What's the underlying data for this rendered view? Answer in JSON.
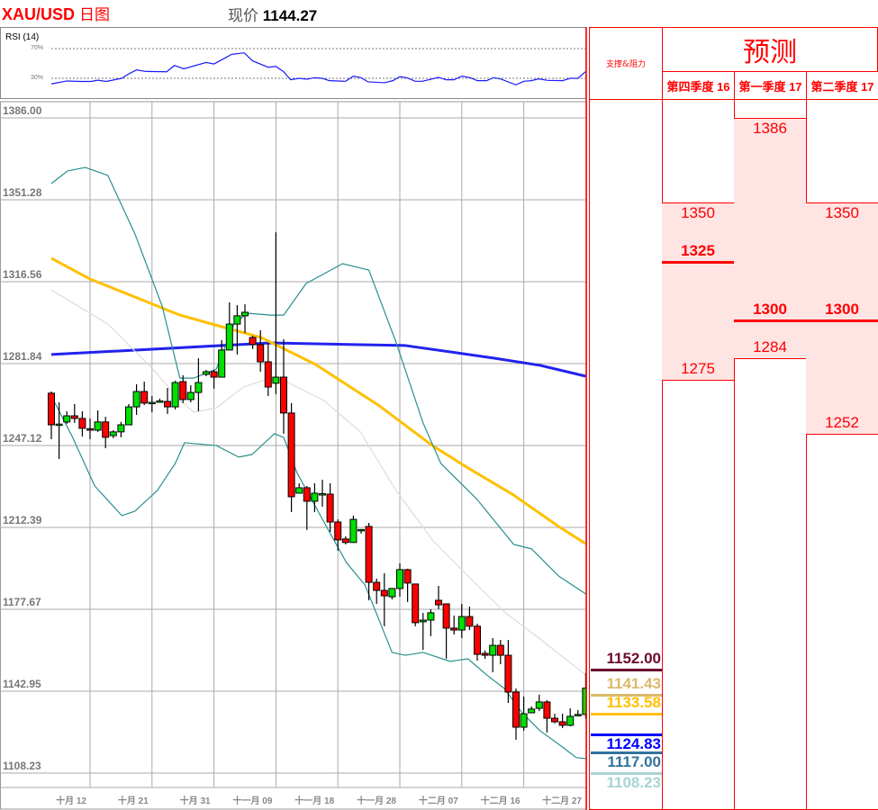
{
  "header": {
    "symbol": "XAU/USD",
    "timeframe": "日图",
    "price_label": "现价",
    "price": "1144.27"
  },
  "rsi": {
    "label": "RSI (14)",
    "upper_level": "70%",
    "lower_level": "30%",
    "upper_value": 70,
    "lower_value": 30,
    "color": "#1a1aff",
    "points": [
      [
        0,
        22.4
      ],
      [
        2,
        26.4
      ],
      [
        3.8,
        25.8
      ],
      [
        5.1,
        25.8
      ],
      [
        6,
        27.4
      ],
      [
        7.1,
        25.8
      ],
      [
        9.1,
        30
      ],
      [
        10,
        36
      ],
      [
        11,
        41.3
      ],
      [
        12.2,
        39.2
      ],
      [
        14.9,
        38.8
      ],
      [
        15.9,
        47.3
      ],
      [
        17.1,
        42.8
      ],
      [
        20,
        51.3
      ],
      [
        21,
        49.3
      ],
      [
        23.3,
        62.3
      ],
      [
        24.9,
        64.3
      ],
      [
        26,
        53.4
      ],
      [
        28,
        44.9
      ],
      [
        29,
        46.1
      ],
      [
        30,
        38.8
      ],
      [
        30.9,
        28
      ],
      [
        32,
        30
      ],
      [
        33,
        28.8
      ],
      [
        34,
        30.8
      ],
      [
        35,
        30
      ],
      [
        35.9,
        26.8
      ],
      [
        38,
        26
      ],
      [
        39,
        32.9
      ],
      [
        40,
        30.8
      ],
      [
        40.9,
        25.2
      ],
      [
        43,
        24
      ],
      [
        44.1,
        26.8
      ],
      [
        45,
        32.1
      ],
      [
        45.9,
        30.8
      ],
      [
        47,
        26
      ],
      [
        47.9,
        26
      ],
      [
        50,
        31.2
      ],
      [
        51,
        28
      ],
      [
        52,
        28
      ],
      [
        53,
        32.9
      ],
      [
        54.1,
        30.8
      ],
      [
        55,
        26.8
      ],
      [
        56.2,
        26.8
      ],
      [
        57.1,
        30.8
      ],
      [
        58,
        29.2
      ],
      [
        60,
        21.2
      ],
      [
        61,
        26
      ],
      [
        62,
        26.8
      ],
      [
        62.9,
        29.2
      ],
      [
        64.1,
        27.2
      ],
      [
        66,
        26.8
      ],
      [
        67,
        30
      ],
      [
        68,
        30
      ],
      [
        69,
        39.2
      ]
    ]
  },
  "chart_data": {
    "type": "candlestick",
    "ylim": [
      1108.23,
      1386.0
    ],
    "y_ticks": [
      "1386.00",
      "1351.28",
      "1316.56",
      "1281.84",
      "1247.12",
      "1212.39",
      "1177.67",
      "1142.95",
      "1108.23"
    ],
    "x_ticks": [
      {
        "label": "十月 12",
        "index": 5
      },
      {
        "label": "十月 21",
        "index": 13
      },
      {
        "label": "十月 31",
        "index": 21
      },
      {
        "label": "十一月 09",
        "index": 29
      },
      {
        "label": "十一月 18",
        "index": 37
      },
      {
        "label": "十一月 28",
        "index": 45
      },
      {
        "label": "十二月 07",
        "index": 53
      },
      {
        "label": "十二月 16",
        "index": 61
      },
      {
        "label": "十二月 27",
        "index": 69
      }
    ],
    "grid": true,
    "up_color": "#00e000",
    "down_color": "#ff0000",
    "candles_ohlc": [
      [
        1269.3,
        1270.0,
        1249.8,
        1255.9
      ],
      [
        1256.0,
        1265.4,
        1241.4,
        1256.2
      ],
      [
        1257.1,
        1261.6,
        1256.3,
        1259.7
      ],
      [
        1259.7,
        1264.7,
        1256.7,
        1258.6
      ],
      [
        1258.6,
        1261.6,
        1250.9,
        1254.4
      ],
      [
        1254.2,
        1258.6,
        1249.8,
        1254.0
      ],
      [
        1253.6,
        1262.0,
        1252.9,
        1257.1
      ],
      [
        1257.1,
        1259.3,
        1246.0,
        1250.6
      ],
      [
        1251.3,
        1253.6,
        1250.2,
        1252.9
      ],
      [
        1252.9,
        1257.1,
        1250.6,
        1255.9
      ],
      [
        1255.9,
        1264.7,
        1255.9,
        1263.5
      ],
      [
        1263.5,
        1273.1,
        1260.1,
        1270.0
      ],
      [
        1270.0,
        1274.2,
        1264.3,
        1265.1
      ],
      [
        1265.1,
        1268.1,
        1261.2,
        1265.4
      ],
      [
        1265.8,
        1267.0,
        1265.4,
        1266.0
      ],
      [
        1265.8,
        1271.5,
        1260.5,
        1263.5
      ],
      [
        1263.5,
        1274.6,
        1262.4,
        1273.8
      ],
      [
        1274.2,
        1276.9,
        1265.1,
        1266.6
      ],
      [
        1266.6,
        1272.7,
        1265.4,
        1269.6
      ],
      [
        1269.6,
        1284.1,
        1261.6,
        1273.8
      ],
      [
        1277.3,
        1279.2,
        1276.5,
        1278.4
      ],
      [
        1278.4,
        1279.2,
        1271.2,
        1276.1
      ],
      [
        1276.1,
        1291.8,
        1276.1,
        1287.6
      ],
      [
        1287.6,
        1307.8,
        1287.6,
        1298.6
      ],
      [
        1298.6,
        1306.6,
        1285.7,
        1302.1
      ],
      [
        1302.1,
        1307.0,
        1294.8,
        1303.6
      ],
      [
        1292.9,
        1293.7,
        1288.0,
        1289.9
      ],
      [
        1289.9,
        1296.0,
        1278.4,
        1282.6
      ],
      [
        1282.6,
        1290.6,
        1268.1,
        1271.9
      ],
      [
        1273.5,
        1337.5,
        1268.9,
        1276.1
      ],
      [
        1276.1,
        1292.2,
        1252.1,
        1260.9
      ],
      [
        1260.9,
        1265.1,
        1218.9,
        1225.4
      ],
      [
        1226.9,
        1231.1,
        1226.9,
        1229.2
      ],
      [
        1229.2,
        1230.0,
        1211.3,
        1223.5
      ],
      [
        1223.5,
        1231.1,
        1218.9,
        1226.9
      ],
      [
        1226.5,
        1232.6,
        1221.2,
        1226.7
      ],
      [
        1226.5,
        1231.1,
        1210.5,
        1214.7
      ],
      [
        1214.7,
        1215.8,
        1202.5,
        1207.1
      ],
      [
        1207.5,
        1208.6,
        1205.2,
        1206.0
      ],
      [
        1206.0,
        1217.4,
        1206.0,
        1215.8
      ],
      [
        1211.3,
        1211.7,
        1209.8,
        1211.5
      ],
      [
        1212.8,
        1214.3,
        1181.5,
        1189.1
      ],
      [
        1189.1,
        1190.7,
        1180.0,
        1185.7
      ],
      [
        1185.7,
        1193.0,
        1170.5,
        1183.4
      ],
      [
        1183.0,
        1186.5,
        1181.9,
        1186.5
      ],
      [
        1186.5,
        1197.2,
        1183.0,
        1194.5
      ],
      [
        1194.5,
        1194.9,
        1180.8,
        1188.8
      ],
      [
        1188.4,
        1188.4,
        1170.5,
        1172.0
      ],
      [
        1172.4,
        1176.2,
        1160.5,
        1173.1
      ],
      [
        1173.1,
        1177.7,
        1166.3,
        1176.2
      ],
      [
        1181.5,
        1187.6,
        1177.7,
        1179.6
      ],
      [
        1180.0,
        1180.0,
        1156.7,
        1169.7
      ],
      [
        1169.7,
        1175.0,
        1167.0,
        1168.9
      ],
      [
        1168.9,
        1180.0,
        1165.5,
        1174.6
      ],
      [
        1174.6,
        1178.8,
        1168.9,
        1170.5
      ],
      [
        1170.5,
        1171.6,
        1155.9,
        1158.6
      ],
      [
        1159.0,
        1160.2,
        1156.7,
        1158.2
      ],
      [
        1158.2,
        1165.5,
        1151.0,
        1162.4
      ],
      [
        1162.4,
        1164.7,
        1154.4,
        1158.2
      ],
      [
        1158.2,
        1164.7,
        1138.0,
        1142.6
      ],
      [
        1142.6,
        1144.1,
        1122.4,
        1127.7
      ],
      [
        1127.7,
        1140.7,
        1126.2,
        1133.4
      ],
      [
        1133.8,
        1136.5,
        1133.8,
        1135.4
      ],
      [
        1135.7,
        1141.5,
        1134.6,
        1138.4
      ],
      [
        1138.4,
        1139.2,
        1125.4,
        1131.5
      ],
      [
        1131.5,
        1133.4,
        1129.3,
        1130.0
      ],
      [
        1130.0,
        1133.4,
        1127.3,
        1128.5
      ],
      [
        1128.5,
        1135.7,
        1128.1,
        1132.3
      ],
      [
        1132.9,
        1135.0,
        1132.3,
        1133.1
      ],
      [
        1133.1,
        1150.6,
        1131.2,
        1144.27
      ]
    ],
    "overlays": [
      {
        "color": "#2222ee",
        "width": 3,
        "points": [
          [
            0,
            1285.7
          ],
          [
            28.3,
            1290.6
          ],
          [
            45.7,
            1289.5
          ],
          [
            57.3,
            1284.1
          ],
          [
            63.1,
            1281.1
          ],
          [
            69,
            1276.5
          ]
        ]
      },
      {
        "color": "#ffc000",
        "width": 3,
        "points": [
          [
            0,
            1326.5
          ],
          [
            5,
            1317.7
          ],
          [
            16.6,
            1302.4
          ],
          [
            22.4,
            1297.1
          ],
          [
            27.1,
            1292.9
          ],
          [
            34.1,
            1281.5
          ],
          [
            42.2,
            1264.3
          ],
          [
            49.2,
            1247.1
          ],
          [
            53.8,
            1237.6
          ],
          [
            59.7,
            1226.1
          ],
          [
            65.5,
            1212.8
          ],
          [
            69,
            1205.5
          ]
        ]
      },
      {
        "color": "#2a8f8f",
        "width": 1.2,
        "points": [
          [
            0,
            1358.2
          ],
          [
            2.1,
            1363.5
          ],
          [
            4.4,
            1365.0
          ],
          [
            7.3,
            1361.6
          ],
          [
            10.8,
            1336.8
          ],
          [
            14.3,
            1306.3
          ],
          [
            16.6,
            1275.7
          ],
          [
            18.4,
            1275.7
          ],
          [
            21.3,
            1279.5
          ],
          [
            23.6,
            1298.6
          ],
          [
            25.3,
            1303.2
          ],
          [
            28.3,
            1302.4
          ],
          [
            30,
            1302.4
          ],
          [
            32.9,
            1315.8
          ],
          [
            37.6,
            1324.2
          ],
          [
            41,
            1321.5
          ],
          [
            44.5,
            1291.0
          ],
          [
            48,
            1256.7
          ],
          [
            50.3,
            1239.5
          ],
          [
            55,
            1224.2
          ],
          [
            59.7,
            1205.2
          ],
          [
            62,
            1203.3
          ],
          [
            65.5,
            1191.8
          ],
          [
            69,
            1184.2
          ]
        ]
      },
      {
        "color": "#2a8f8f",
        "width": 1.2,
        "points": [
          [
            0,
            1268.1
          ],
          [
            2.7,
            1250.9
          ],
          [
            5.6,
            1230.0
          ],
          [
            9.1,
            1217.4
          ],
          [
            10.8,
            1219.3
          ],
          [
            13.7,
            1228.1
          ],
          [
            16,
            1239.5
          ],
          [
            17.2,
            1248.3
          ],
          [
            21.3,
            1247.1
          ],
          [
            24.2,
            1242.2
          ],
          [
            25.9,
            1243.3
          ],
          [
            28.8,
            1252.1
          ],
          [
            30,
            1250.6
          ],
          [
            31.7,
            1235.7
          ],
          [
            35.2,
            1214.7
          ],
          [
            38.1,
            1197.5
          ],
          [
            40.5,
            1188.0
          ],
          [
            44,
            1159.4
          ],
          [
            45.7,
            1158.2
          ],
          [
            48,
            1159.4
          ],
          [
            51.5,
            1155.6
          ],
          [
            53.8,
            1156.7
          ],
          [
            56.2,
            1149.9
          ],
          [
            58.5,
            1144.1
          ],
          [
            60.8,
            1133.8
          ],
          [
            63.1,
            1126.2
          ],
          [
            66,
            1119.3
          ],
          [
            67.8,
            1114.8
          ],
          [
            69,
            1114.4
          ]
        ]
      },
      {
        "color": "#dddddd",
        "width": 1.2,
        "points": [
          [
            0,
            1313.1
          ],
          [
            7.3,
            1298.6
          ],
          [
            13.1,
            1279.5
          ],
          [
            16.6,
            1266.2
          ],
          [
            18.4,
            1261.3
          ],
          [
            21.3,
            1263.0
          ],
          [
            24.8,
            1271.9
          ],
          [
            28.3,
            1275.7
          ],
          [
            30.6,
            1273.8
          ],
          [
            35.2,
            1266.2
          ],
          [
            39.9,
            1252.9
          ],
          [
            44.5,
            1228.1
          ],
          [
            49.2,
            1207.1
          ],
          [
            53.8,
            1191.8
          ],
          [
            58.5,
            1176.6
          ],
          [
            63.1,
            1165.1
          ],
          [
            69,
            1149.9
          ]
        ]
      }
    ]
  },
  "sr_panel": {
    "header": "支撑&阻力",
    "levels": [
      {
        "value": "1152.00",
        "price": 1152.0,
        "color": "#6b0a2e",
        "text_above_line": true
      },
      {
        "value": "1141.43",
        "price": 1141.43,
        "color": "#dcb96a",
        "text_above_line": true
      },
      {
        "value": "1133.58",
        "price": 1133.58,
        "color": "#ffc000",
        "text_above_line": true
      },
      {
        "value": "1124.83",
        "price": 1124.83,
        "color": "#0000ff",
        "text_above_line": false
      },
      {
        "value": "1117.00",
        "price": 1117.0,
        "color": "#31739c",
        "text_above_line": false
      },
      {
        "value": "1108.23",
        "price": 1108.23,
        "color": "#a8d4d6",
        "text_above_line": false
      }
    ]
  },
  "forecast": {
    "title": "预测",
    "quarters": [
      {
        "label": "第四季度 16",
        "zone": [
          1275,
          1350
        ],
        "levels": [
          {
            "value": "1350",
            "price": 1350,
            "bold": false
          },
          {
            "value": "1325",
            "price": 1325,
            "bold": true
          },
          {
            "value": "1275",
            "price": 1275,
            "bold": false
          }
        ]
      },
      {
        "label": "第一季度 17",
        "zone": [
          1284,
          1386
        ],
        "levels": [
          {
            "value": "1386",
            "price": 1386,
            "bold": false
          },
          {
            "value": "1300",
            "price": 1300,
            "bold": true
          },
          {
            "value": "1284",
            "price": 1284,
            "bold": false
          }
        ]
      },
      {
        "label": "第二季度 17",
        "zone": [
          1252,
          1350
        ],
        "levels": [
          {
            "value": "1350",
            "price": 1350,
            "bold": false
          },
          {
            "value": "1300",
            "price": 1300,
            "bold": true
          },
          {
            "value": "1252",
            "price": 1252,
            "bold": false
          }
        ]
      }
    ]
  }
}
